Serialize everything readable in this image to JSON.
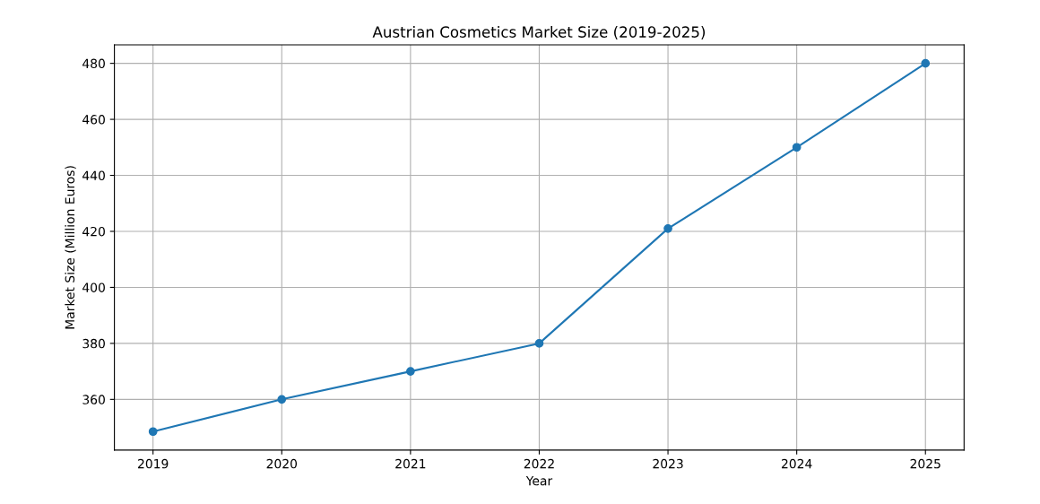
{
  "chart_data": {
    "type": "line",
    "title": "Austrian Cosmetics Market Size (2019-2025)",
    "xlabel": "Year",
    "ylabel": "Market Size (Million Euros)",
    "x": [
      2019,
      2020,
      2021,
      2022,
      2023,
      2024,
      2025
    ],
    "series": [
      {
        "color": "#1f77b4",
        "values": [
          348.5,
          360,
          370,
          380,
          421,
          450,
          480
        ]
      }
    ],
    "xlim": [
      2018.7,
      2025.3
    ],
    "xticks": [
      2019,
      2020,
      2021,
      2022,
      2023,
      2024,
      2025
    ],
    "ylim": [
      341.9,
      486.6
    ],
    "yticks": [
      360,
      380,
      400,
      420,
      440,
      460,
      480
    ],
    "grid": true,
    "marker": "circle",
    "line_style": "solid"
  }
}
